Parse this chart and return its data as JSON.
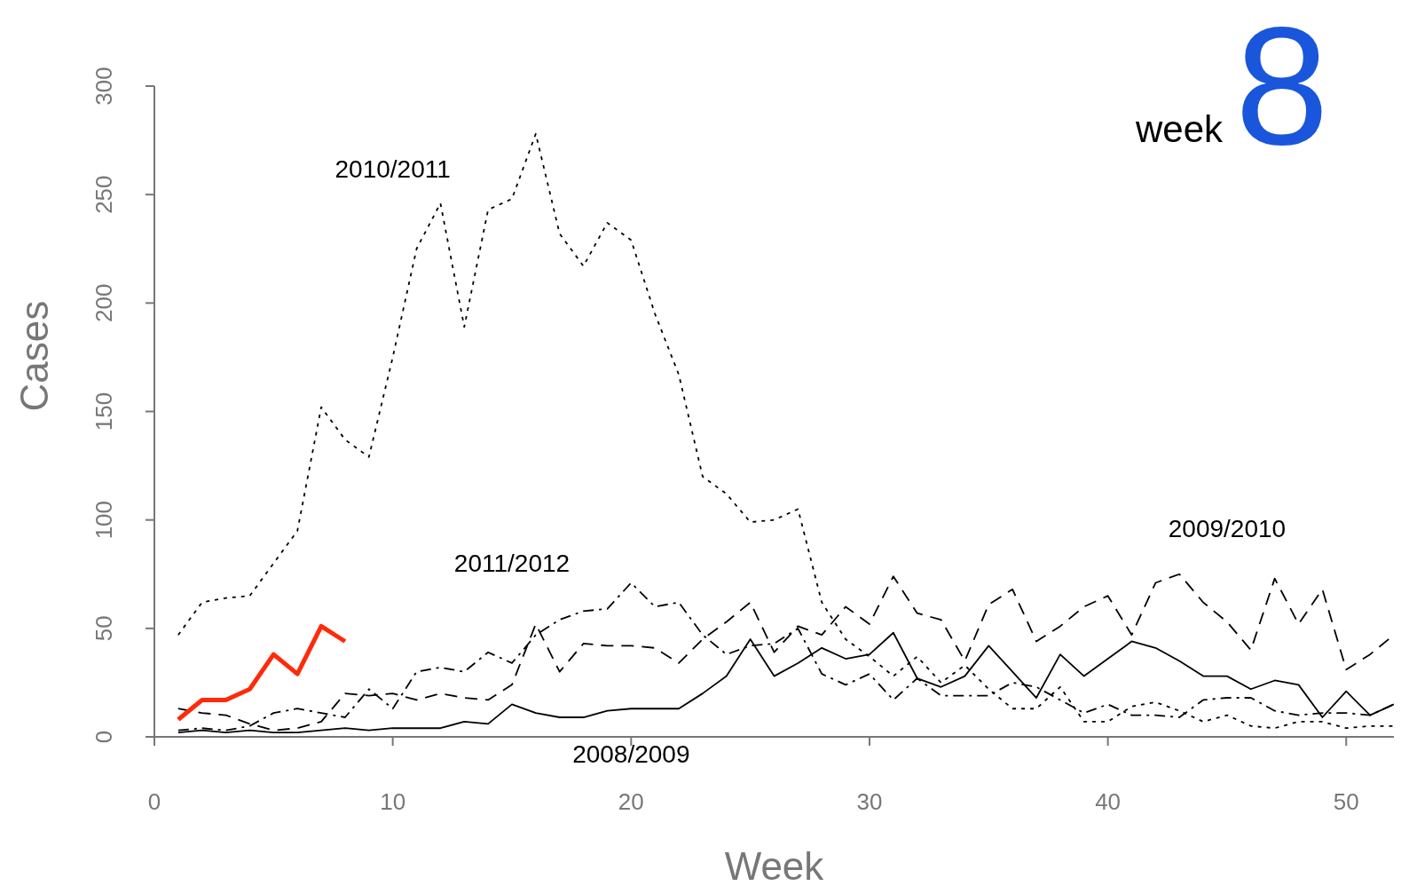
{
  "chart_data": {
    "type": "line",
    "xlabel": "Week",
    "ylabel": "Cases",
    "x": [
      1,
      2,
      3,
      4,
      5,
      6,
      7,
      8,
      9,
      10,
      11,
      12,
      13,
      14,
      15,
      16,
      17,
      18,
      19,
      20,
      21,
      22,
      23,
      24,
      25,
      26,
      27,
      28,
      29,
      30,
      31,
      32,
      33,
      34,
      35,
      36,
      37,
      38,
      39,
      40,
      41,
      42,
      43,
      44,
      45,
      46,
      47,
      48,
      49,
      50,
      51,
      52
    ],
    "series": [
      {
        "name": "2008/2009",
        "color": "#000000",
        "line_style": "solid",
        "values": [
          2,
          3,
          2,
          3,
          2,
          2,
          3,
          4,
          3,
          4,
          4,
          4,
          7,
          6,
          15,
          11,
          9,
          9,
          12,
          13,
          13,
          13,
          20,
          28,
          45,
          28,
          34,
          41,
          36,
          38,
          48,
          27,
          23,
          28,
          42,
          30,
          18,
          38,
          28,
          36,
          44,
          41,
          35,
          28,
          28,
          22,
          26,
          24,
          9,
          21,
          10,
          15
        ]
      },
      {
        "name": "2009/2010",
        "color": "#000000",
        "line_style": "dashed",
        "values": [
          13,
          11,
          10,
          6,
          3,
          4,
          7,
          20,
          19,
          20,
          17,
          20,
          18,
          17,
          24,
          52,
          30,
          43,
          42,
          42,
          41,
          34,
          45,
          53,
          62,
          39,
          51,
          47,
          60,
          52,
          74,
          57,
          54,
          35,
          61,
          68,
          44,
          51,
          60,
          65,
          47,
          71,
          75,
          62,
          53,
          40,
          73,
          52,
          68,
          31,
          38,
          47
        ]
      },
      {
        "name": "2010/2011",
        "color": "#000000",
        "line_style": "dotted",
        "values": [
          47,
          62,
          64,
          65,
          80,
          95,
          152,
          137,
          129,
          175,
          225,
          246,
          189,
          243,
          248,
          278,
          232,
          217,
          237,
          229,
          195,
          167,
          120,
          112,
          99,
          100,
          105,
          62,
          45,
          37,
          28,
          37,
          25,
          33,
          22,
          13,
          13,
          23,
          7,
          7,
          14,
          16,
          12,
          7,
          10,
          5,
          4,
          7,
          7,
          4,
          5,
          5
        ]
      },
      {
        "name": "2011/2012",
        "color": "#000000",
        "line_style": "dashdot",
        "values": [
          3,
          4,
          3,
          5,
          11,
          13,
          11,
          9,
          22,
          13,
          30,
          32,
          30,
          39,
          34,
          47,
          54,
          58,
          59,
          71,
          60,
          62,
          47,
          38,
          42,
          43,
          50,
          29,
          24,
          29,
          17,
          27,
          19,
          19,
          19,
          25,
          23,
          17,
          11,
          15,
          10,
          10,
          9,
          17,
          18,
          18,
          12,
          10,
          11,
          11,
          10,
          15
        ]
      },
      {
        "color": "#ff2a0a",
        "line_style": "solid",
        "values": [
          8,
          17,
          17,
          22,
          38,
          29,
          51,
          44,
          null,
          null,
          null,
          null,
          null,
          null,
          null,
          null,
          null,
          null,
          null,
          null,
          null,
          null,
          null,
          null,
          null,
          null,
          null,
          null,
          null,
          null,
          null,
          null,
          null,
          null,
          null,
          null,
          null,
          null,
          null,
          null,
          null,
          null,
          null,
          null,
          null,
          null,
          null,
          null,
          null,
          null,
          null,
          null
        ]
      }
    ],
    "xlim": [
      0,
      52
    ],
    "xticks": [
      0,
      10,
      20,
      30,
      40,
      50
    ],
    "ylim": [
      0,
      300
    ],
    "yticks": [
      0,
      50,
      100,
      150,
      200,
      250,
      300
    ],
    "annotations": [
      "week",
      "8"
    ]
  }
}
